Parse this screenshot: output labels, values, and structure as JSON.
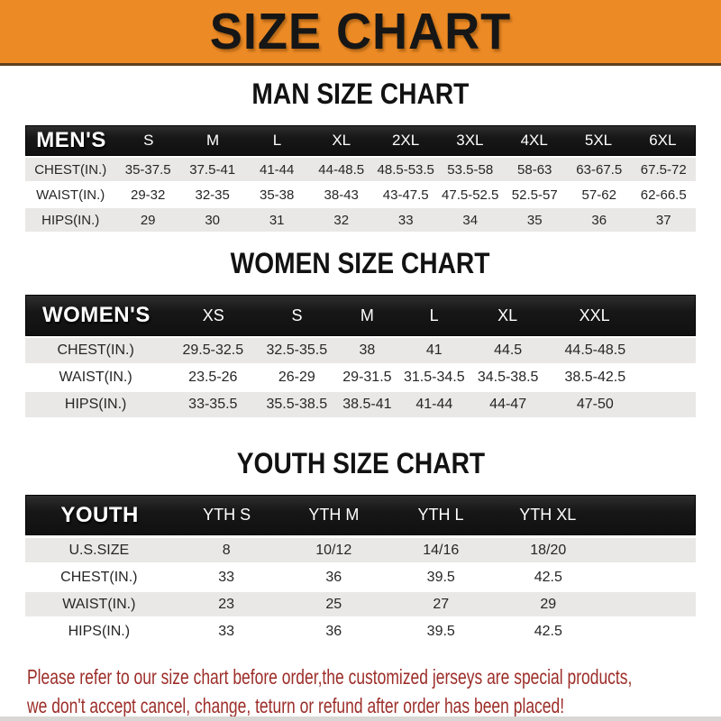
{
  "banner": {
    "title": "SIZE CHART"
  },
  "colors": {
    "banner_bg": "#EC8A25",
    "header_band": "#161616",
    "row_shade": "#E9E8E6",
    "footer_text": "#9C2E29"
  },
  "chart_data": [
    {
      "type": "table",
      "title": "MAN SIZE CHART",
      "header_label": "MEN'S",
      "columns": [
        "S",
        "M",
        "L",
        "XL",
        "2XL",
        "3XL",
        "4XL",
        "5XL",
        "6XL"
      ],
      "rows": [
        {
          "label": "CHEST(IN.)",
          "values": [
            "35-37.5",
            "37.5-41",
            "41-44",
            "44-48.5",
            "48.5-53.5",
            "53.5-58",
            "58-63",
            "63-67.5",
            "67.5-72"
          ]
        },
        {
          "label": "WAIST(IN.)",
          "values": [
            "29-32",
            "32-35",
            "35-38",
            "38-43",
            "43-47.5",
            "47.5-52.5",
            "52.5-57",
            "57-62",
            "62-66.5"
          ]
        },
        {
          "label": "HIPS(IN.)",
          "values": [
            "29",
            "30",
            "31",
            "32",
            "33",
            "34",
            "35",
            "36",
            "37"
          ]
        }
      ]
    },
    {
      "type": "table",
      "title": "WOMEN SIZE CHART",
      "header_label": "WOMEN'S",
      "columns": [
        "XS",
        "S",
        "M",
        "L",
        "XL",
        "XXL"
      ],
      "rows": [
        {
          "label": "CHEST(IN.)",
          "values": [
            "29.5-32.5",
            "32.5-35.5",
            "38",
            "41",
            "44.5",
            "44.5-48.5"
          ]
        },
        {
          "label": "WAIST(IN.)",
          "values": [
            "23.5-26",
            "26-29",
            "29-31.5",
            "31.5-34.5",
            "34.5-38.5",
            "38.5-42.5"
          ]
        },
        {
          "label": "HIPS(IN.)",
          "values": [
            "33-35.5",
            "35.5-38.5",
            "38.5-41",
            "41-44",
            "44-47",
            "47-50"
          ]
        }
      ]
    },
    {
      "type": "table",
      "title": "YOUTH SIZE CHART",
      "header_label": "YOUTH",
      "columns": [
        "YTH S",
        "YTH M",
        "YTH L",
        "YTH XL"
      ],
      "rows": [
        {
          "label": "U.S.SIZE",
          "values": [
            "8",
            "10/12",
            "14/16",
            "18/20"
          ]
        },
        {
          "label": "CHEST(IN.)",
          "values": [
            "33",
            "36",
            "39.5",
            "42.5"
          ]
        },
        {
          "label": "WAIST(IN.)",
          "values": [
            "23",
            "25",
            "27",
            "29"
          ]
        },
        {
          "label": "HIPS(IN.)",
          "values": [
            "33",
            "36",
            "39.5",
            "42.5"
          ]
        }
      ]
    }
  ],
  "footer": {
    "line1": "Please refer to our size chart before order,the customized jerseys are special products,",
    "line2": "we don't accept cancel, change, teturn or refund after order has been placed!"
  }
}
